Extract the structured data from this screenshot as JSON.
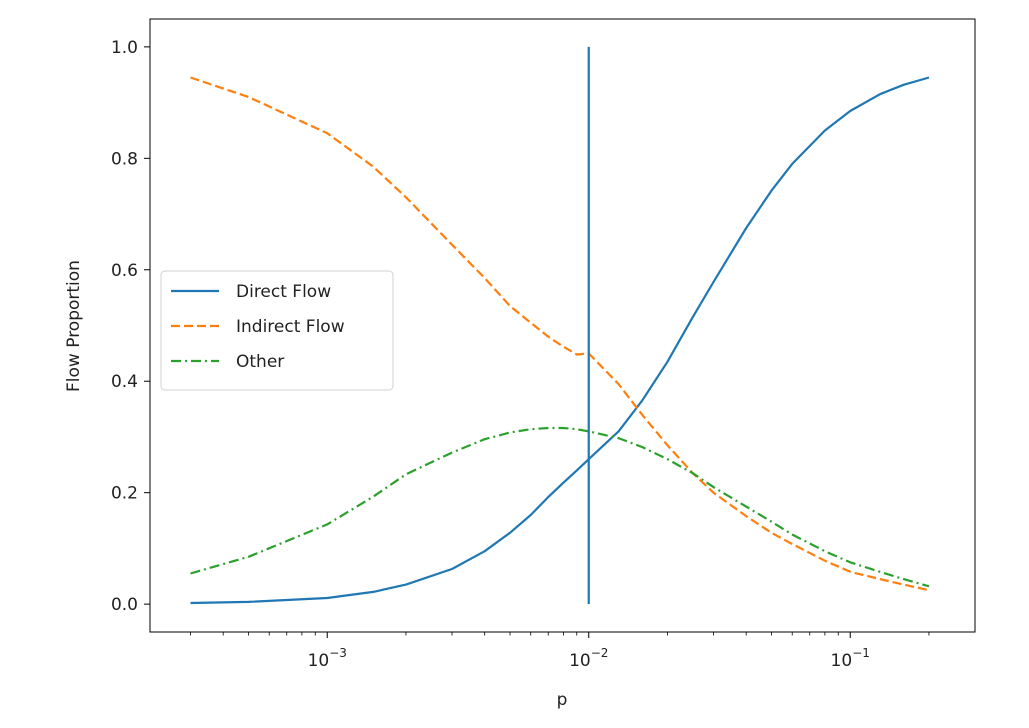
{
  "chart_data": {
    "type": "line",
    "title": "",
    "xlabel": "p",
    "ylabel": "Flow Proportion",
    "xscale": "log",
    "xlim": [
      0.00021,
      0.3
    ],
    "ylim": [
      -0.05,
      1.05
    ],
    "x_ticks": [
      {
        "value": 0.001,
        "base": "10",
        "exp": "−3"
      },
      {
        "value": 0.01,
        "base": "10",
        "exp": "−2"
      },
      {
        "value": 0.1,
        "base": "10",
        "exp": "−1"
      }
    ],
    "y_ticks": [
      "0.0",
      "0.2",
      "0.4",
      "0.6",
      "0.8",
      "1.0"
    ],
    "grid": false,
    "legend_position": "center-left",
    "series": [
      {
        "name": "Direct Flow",
        "color": "#1f77b4",
        "style": "solid",
        "x": [
          0.0003,
          0.0005,
          0.001,
          0.0015,
          0.002,
          0.003,
          0.004,
          0.005,
          0.006,
          0.007,
          0.008,
          0.009,
          0.01,
          0.013,
          0.016,
          0.02,
          0.025,
          0.03,
          0.04,
          0.05,
          0.06,
          0.08,
          0.1,
          0.13,
          0.16,
          0.2
        ],
        "y": [
          0.002,
          0.004,
          0.011,
          0.022,
          0.035,
          0.063,
          0.095,
          0.128,
          0.16,
          0.192,
          0.218,
          0.24,
          0.26,
          0.31,
          0.365,
          0.435,
          0.515,
          0.578,
          0.675,
          0.742,
          0.79,
          0.85,
          0.885,
          0.915,
          0.932,
          0.945
        ]
      },
      {
        "name": "Indirect Flow",
        "color": "#ff7f0e",
        "style": "dashed",
        "x": [
          0.0003,
          0.0005,
          0.001,
          0.0015,
          0.002,
          0.003,
          0.004,
          0.005,
          0.006,
          0.007,
          0.008,
          0.009,
          0.01,
          0.013,
          0.016,
          0.02,
          0.025,
          0.03,
          0.04,
          0.05,
          0.06,
          0.08,
          0.1,
          0.13,
          0.16,
          0.2
        ],
        "y": [
          0.945,
          0.91,
          0.845,
          0.785,
          0.73,
          0.645,
          0.585,
          0.535,
          0.505,
          0.48,
          0.462,
          0.448,
          0.45,
          0.395,
          0.34,
          0.285,
          0.235,
          0.2,
          0.158,
          0.128,
          0.108,
          0.078,
          0.058,
          0.045,
          0.035,
          0.025
        ]
      },
      {
        "name": "Other",
        "color": "#2ca02c",
        "style": "dashdot",
        "x": [
          0.0003,
          0.0005,
          0.001,
          0.0015,
          0.002,
          0.003,
          0.004,
          0.005,
          0.006,
          0.007,
          0.008,
          0.009,
          0.01,
          0.013,
          0.016,
          0.02,
          0.025,
          0.03,
          0.04,
          0.05,
          0.06,
          0.08,
          0.1,
          0.13,
          0.16,
          0.2
        ],
        "y": [
          0.055,
          0.085,
          0.143,
          0.193,
          0.233,
          0.272,
          0.296,
          0.308,
          0.314,
          0.316,
          0.316,
          0.314,
          0.31,
          0.298,
          0.282,
          0.26,
          0.235,
          0.21,
          0.175,
          0.148,
          0.125,
          0.095,
          0.075,
          0.058,
          0.045,
          0.032
        ]
      }
    ],
    "vline": {
      "x": 0.01,
      "ymin": 0.0,
      "ymax": 1.0,
      "color": "#1f77b4"
    }
  }
}
